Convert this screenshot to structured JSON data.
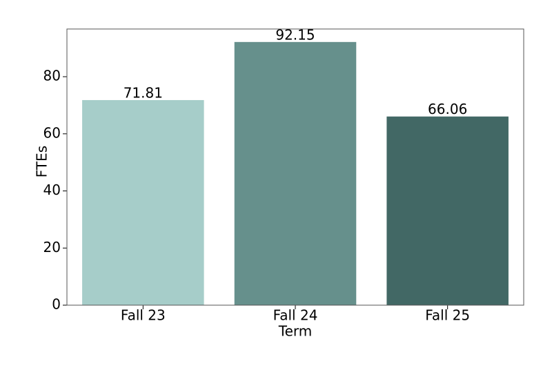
{
  "chart_data": {
    "type": "bar",
    "x_label": "Term",
    "y_label": "FTEs",
    "categories": [
      "Fall 23",
      "Fall 24",
      "Fall 25"
    ],
    "values": [
      71.81,
      92.15,
      66.06
    ],
    "colors": [
      "#a6cdc9",
      "#66908c",
      "#426865"
    ],
    "ylim": [
      0,
      96.7
    ],
    "yticks": [
      0,
      20,
      40,
      60,
      80
    ]
  }
}
